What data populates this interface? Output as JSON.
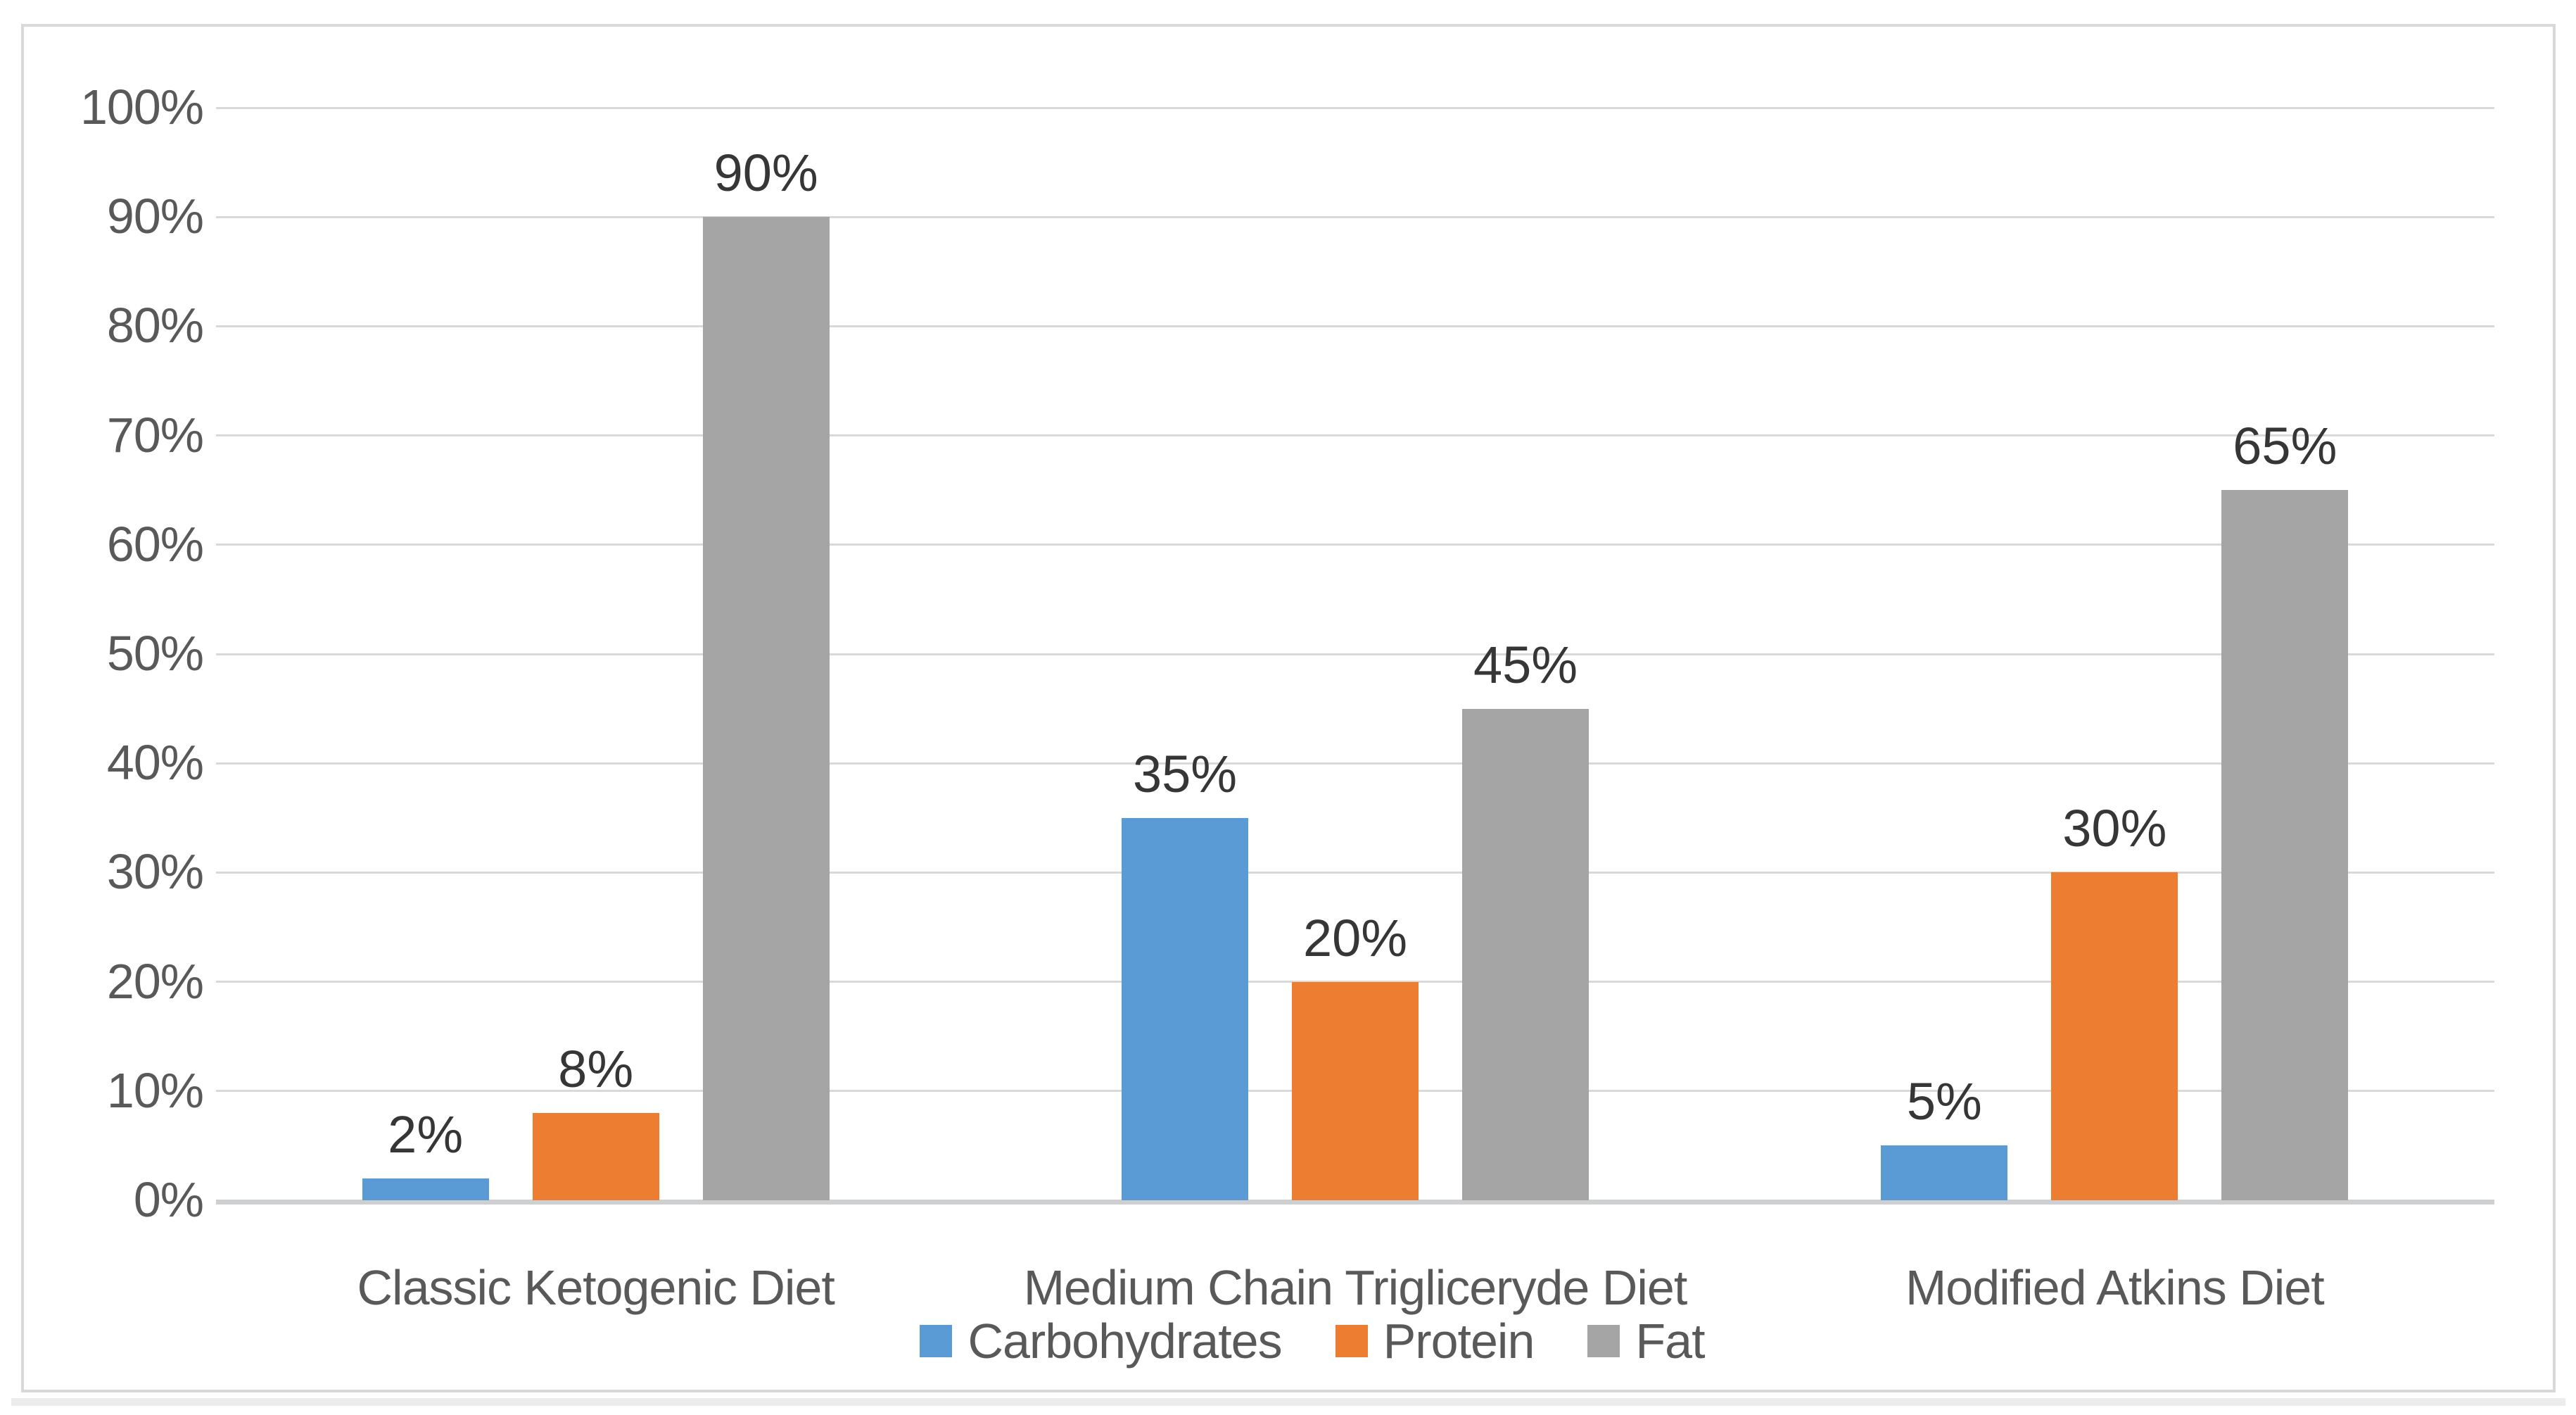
{
  "chart_data": {
    "type": "bar",
    "title": "",
    "xlabel": "",
    "ylabel": "",
    "categories": [
      "Classic Ketogenic Diet",
      "Medium Chain Trigliceryde Diet",
      "Modified Atkins Diet"
    ],
    "series": [
      {
        "name": "Carbohydrates",
        "color": "#5B9BD5",
        "values": [
          2,
          35,
          5
        ],
        "data_labels": [
          "2%",
          "35%",
          "5%"
        ]
      },
      {
        "name": "Protein",
        "color": "#ED7D31",
        "values": [
          8,
          20,
          30
        ],
        "data_labels": [
          "8%",
          "20%",
          "30%"
        ]
      },
      {
        "name": "Fat",
        "color": "#A5A5A5",
        "values": [
          90,
          45,
          65
        ],
        "data_labels": [
          "90%",
          "45%",
          "65%"
        ]
      }
    ],
    "y_axis": {
      "min": 0,
      "max": 100,
      "tick_step": 10,
      "tick_labels": [
        "0%",
        "10%",
        "20%",
        "30%",
        "40%",
        "50%",
        "60%",
        "70%",
        "80%",
        "90%",
        "100%"
      ]
    },
    "grid": true,
    "legend_position": "bottom",
    "colors": {
      "gridline": "#D9D9D9",
      "axis_line": "#CDCFD1",
      "frame_border": "#D9D9D9",
      "tick_text": "#595959",
      "category_text": "#595959",
      "legend_text": "#595959",
      "data_label_text": "#363636",
      "background": "#FFFFFF"
    }
  }
}
